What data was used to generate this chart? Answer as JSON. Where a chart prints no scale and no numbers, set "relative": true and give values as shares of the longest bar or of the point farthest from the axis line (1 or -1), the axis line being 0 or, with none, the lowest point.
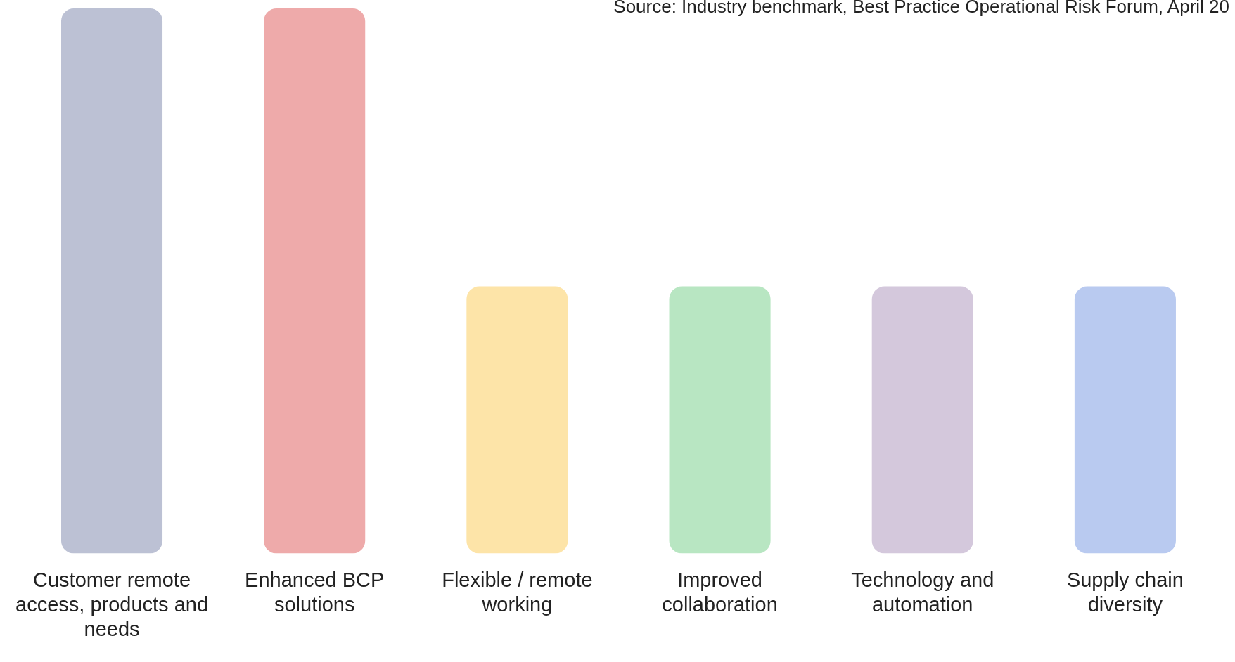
{
  "chart_data": {
    "type": "bar",
    "relative": true,
    "categories": [
      "Customer remote access, products and needs",
      "Enhanced BCP solutions",
      "Flexible / remote working",
      "Improved collaboration",
      "Technology and automation",
      "Supply chain diversity"
    ],
    "values": [
      1,
      1,
      0.49,
      0.49,
      0.49,
      0.49
    ],
    "colors": [
      "#bcc1d4",
      "#eeaaaa",
      "#fde4a8",
      "#b8e6c2",
      "#d4c8dc",
      "#b9caf0"
    ],
    "annotations": [
      "Source: Industry benchmark, Best Practice Operational Risk Forum, April 20"
    ]
  }
}
